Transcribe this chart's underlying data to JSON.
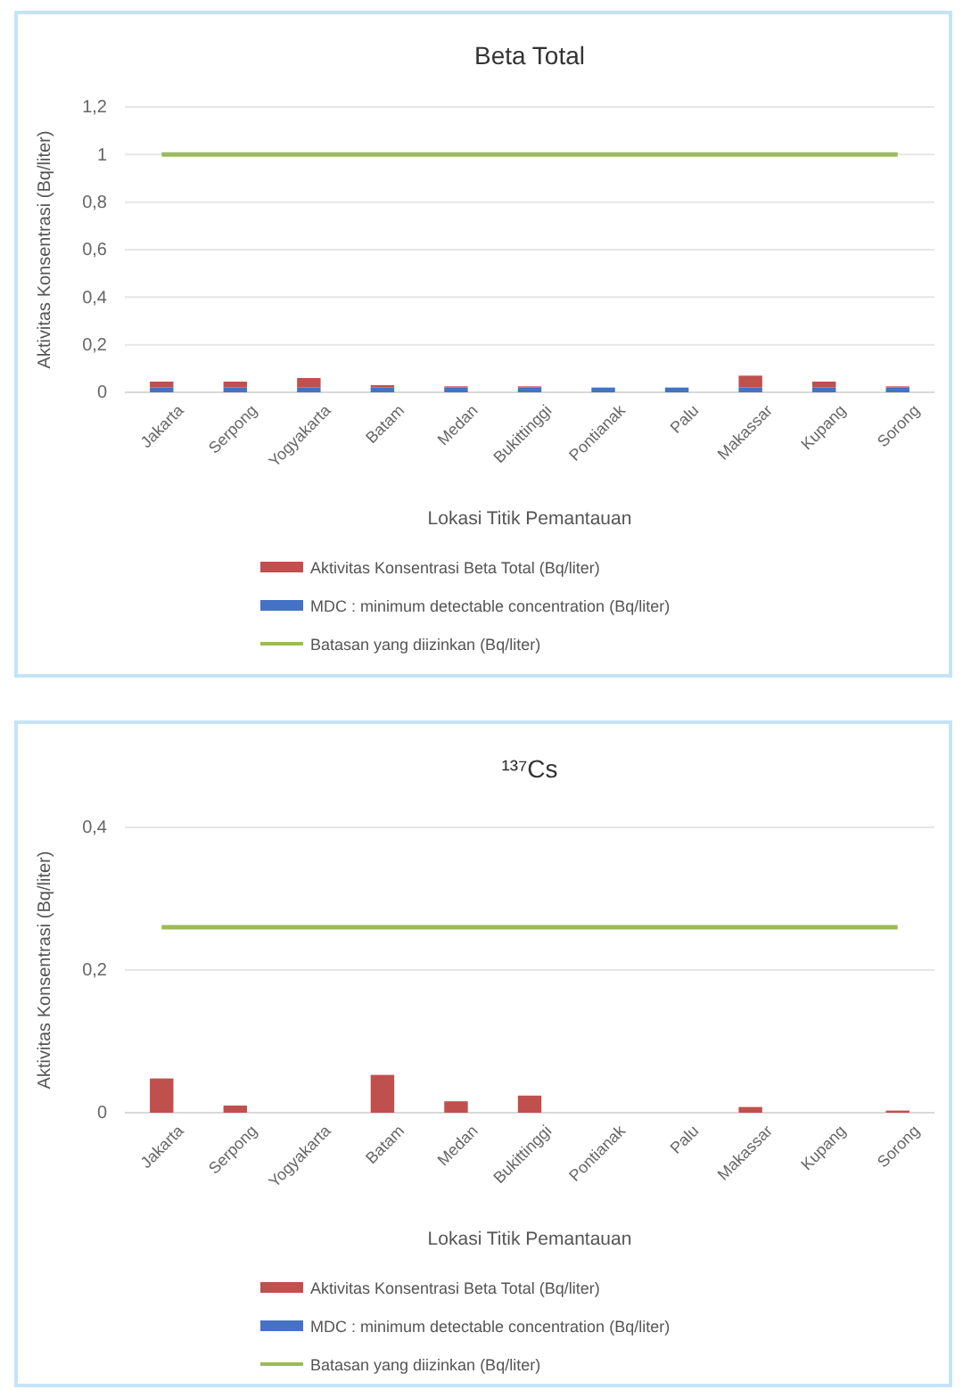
{
  "chart_data": [
    {
      "type": "bar",
      "title": "Beta Total",
      "xlabel": "Lokasi Titik Pemantauan",
      "ylabel": "Aktivitas Konsentrasi (Bq/liter)",
      "stacked": true,
      "categories": [
        "Jakarta",
        "Serpong",
        "Yogyakarta",
        "Batam",
        "Medan",
        "Bukittinggi",
        "Pontianak",
        "Palu",
        "Makassar",
        "Kupang",
        "Sorong"
      ],
      "series": [
        {
          "name": "MDC : minimum detectable concentration (Bq/liter)",
          "color": "#4472c4",
          "values": [
            0.02,
            0.02,
            0.02,
            0.02,
            0.02,
            0.02,
            0.02,
            0.02,
            0.02,
            0.02,
            0.02
          ]
        },
        {
          "name": "Aktivitas Konsentrasi Beta Total (Bq/liter)",
          "color": "#c0504d",
          "values": [
            0.025,
            0.025,
            0.04,
            0.01,
            0.005,
            0.005,
            0,
            0,
            0.05,
            0.025,
            0.005
          ]
        },
        {
          "name": "Batasan yang diizinkan (Bq/liter)",
          "type": "line",
          "color": "#9bbb59",
          "values": [
            1,
            1,
            1,
            1,
            1,
            1,
            1,
            1,
            1,
            1,
            1
          ]
        }
      ],
      "ylim": [
        0,
        1.2
      ],
      "yticks": [
        {
          "value": 0,
          "label": "0"
        },
        {
          "value": 0.2,
          "label": "0,2"
        },
        {
          "value": 0.4,
          "label": "0,4"
        },
        {
          "value": 0.6,
          "label": "0,6"
        },
        {
          "value": 0.8,
          "label": "0,8"
        },
        {
          "value": 1,
          "label": "1"
        },
        {
          "value": 1.2,
          "label": "1,2"
        }
      ],
      "grid": "y",
      "legend": "bottom"
    },
    {
      "type": "bar",
      "title": "¹³⁷Cs",
      "xlabel": "Lokasi Titik Pemantauan",
      "ylabel": "Aktivitas Konsentrasi (Bq/liter)",
      "stacked": true,
      "categories": [
        "Jakarta",
        "Serpong",
        "Yogyakarta",
        "Batam",
        "Medan",
        "Bukittinggi",
        "Pontianak",
        "Palu",
        "Makassar",
        "Kupang",
        "Sorong"
      ],
      "series": [
        {
          "name": "MDC : minimum detectable concentration (Bq/liter)",
          "color": "#4472c4",
          "values": [
            null,
            null,
            null,
            null,
            null,
            null,
            null,
            null,
            null,
            null,
            null
          ]
        },
        {
          "name": "Aktivitas Konsentrasi Beta Total (Bq/liter)",
          "color": "#c0504d",
          "values": [
            0.048,
            0.01,
            null,
            0.053,
            0.016,
            0.024,
            null,
            null,
            0.008,
            null,
            0.003
          ]
        },
        {
          "name": "Batasan yang diizinkan (Bq/liter)",
          "type": "line",
          "color": "#9bbb59",
          "values": [
            0.26,
            0.26,
            0.26,
            0.26,
            0.26,
            0.26,
            0.26,
            0.26,
            0.26,
            0.26,
            0.26
          ]
        }
      ],
      "ylim": [
        0,
        0.4
      ],
      "yticks": [
        {
          "value": 0,
          "label": "0"
        },
        {
          "value": 0.2,
          "label": "0,2"
        },
        {
          "value": 0.4,
          "label": "0,4"
        }
      ],
      "grid": "y",
      "legend": "bottom"
    }
  ]
}
